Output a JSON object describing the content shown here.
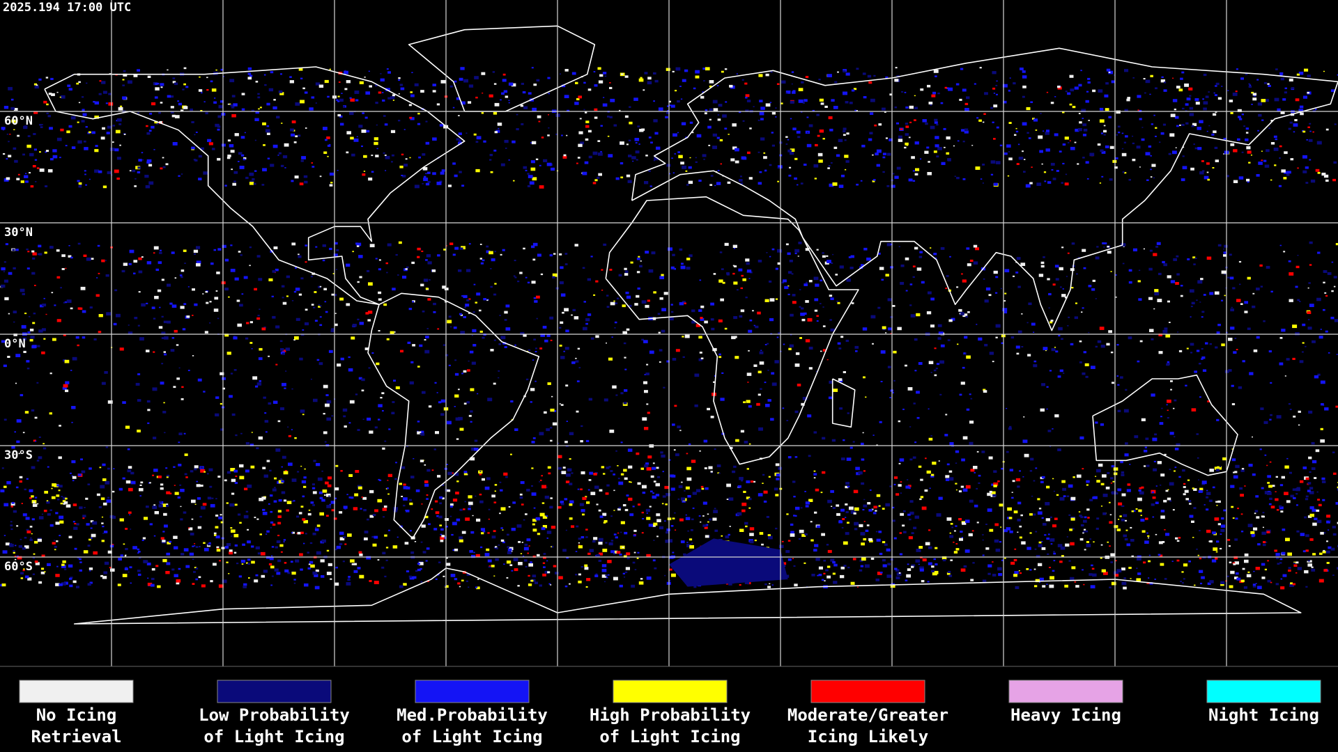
{
  "timestamp": "2025.194 17:00 UTC",
  "latitude_labels": [
    "60°N",
    "30°N",
    "0°N",
    "30°S",
    "60°S"
  ],
  "legend": [
    {
      "label_lines": [
        "No Icing",
        "Retrieval"
      ],
      "color": "#f0f0f0"
    },
    {
      "label_lines": [
        "Low Probability",
        "of Light Icing"
      ],
      "color": "#0a0a7a"
    },
    {
      "label_lines": [
        "Med.Probability",
        "of Light Icing"
      ],
      "color": "#1414f5"
    },
    {
      "label_lines": [
        "High Probability",
        "of Light Icing"
      ],
      "color": "#ffff00"
    },
    {
      "label_lines": [
        "Moderate/Greater",
        "Icing Likely"
      ],
      "color": "#ff0000"
    },
    {
      "label_lines": [
        "Heavy Icing"
      ],
      "color": "#e6a3e6"
    },
    {
      "label_lines": [
        "Night Icing"
      ],
      "color": "#00ffff"
    }
  ]
}
